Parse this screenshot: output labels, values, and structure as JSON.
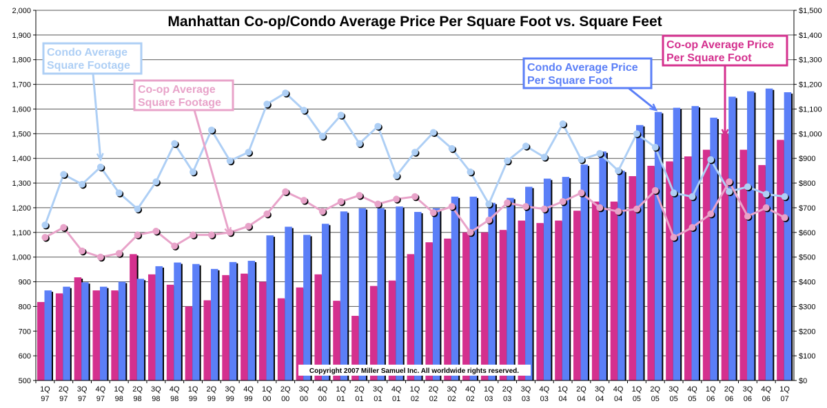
{
  "chart_data": {
    "type": "bar",
    "title": "Manhattan Co-op/Condo Average Price Per Square Foot vs. Square Feet",
    "copyright": "Copyright 2007 Miller Samuel Inc.  All worldwide rights reserved.",
    "grid": true,
    "left_axis": {
      "ylim": [
        500,
        2000
      ],
      "step": 100,
      "format": "comma"
    },
    "right_axis": {
      "ylim": [
        0,
        1500
      ],
      "step": 100,
      "format": "dollar"
    },
    "categories": [
      [
        "1Q",
        "97"
      ],
      [
        "2Q",
        "97"
      ],
      [
        "3Q",
        "97"
      ],
      [
        "4Q",
        "97"
      ],
      [
        "1Q",
        "98"
      ],
      [
        "2Q",
        "98"
      ],
      [
        "3Q",
        "98"
      ],
      [
        "4Q",
        "98"
      ],
      [
        "1Q",
        "99"
      ],
      [
        "2Q",
        "99"
      ],
      [
        "3Q",
        "99"
      ],
      [
        "4Q",
        "99"
      ],
      [
        "1Q",
        "00"
      ],
      [
        "2Q",
        "00"
      ],
      [
        "3Q",
        "00"
      ],
      [
        "4Q",
        "00"
      ],
      [
        "1Q",
        "01"
      ],
      [
        "2Q",
        "01"
      ],
      [
        "3Q",
        "01"
      ],
      [
        "4Q",
        "01"
      ],
      [
        "1Q",
        "02"
      ],
      [
        "2Q",
        "02"
      ],
      [
        "3Q",
        "02"
      ],
      [
        "4Q",
        "02"
      ],
      [
        "1Q",
        "03"
      ],
      [
        "2Q",
        "03"
      ],
      [
        "3Q",
        "03"
      ],
      [
        "4Q",
        "03"
      ],
      [
        "1Q",
        "04"
      ],
      [
        "2Q",
        "04"
      ],
      [
        "3Q",
        "04"
      ],
      [
        "4Q",
        "04"
      ],
      [
        "1Q",
        "05"
      ],
      [
        "2Q",
        "05"
      ],
      [
        "3Q",
        "05"
      ],
      [
        "4Q",
        "05"
      ],
      [
        "1Q",
        "06"
      ],
      [
        "2Q",
        "06"
      ],
      [
        "3Q",
        "06"
      ],
      [
        "4Q",
        "06"
      ],
      [
        "1Q",
        "07"
      ]
    ],
    "series": [
      {
        "name": "Co-op Average Price Per Square Foot",
        "kind": "bar",
        "axis": "right",
        "color": "#d4308e",
        "values": [
          318,
          353,
          418,
          365,
          365,
          512,
          430,
          388,
          300,
          325,
          427,
          433,
          400,
          333,
          377,
          430,
          323,
          262,
          383,
          405,
          512,
          560,
          575,
          600,
          600,
          610,
          648,
          638,
          648,
          688,
          725,
          725,
          828,
          870,
          888,
          908,
          935,
          1000,
          935,
          873,
          975
        ]
      },
      {
        "name": "Condo Average Price Per Square Foot",
        "kind": "bar",
        "axis": "right",
        "color": "#5b7ff7",
        "values": [
          365,
          380,
          398,
          380,
          400,
          412,
          463,
          478,
          472,
          452,
          480,
          485,
          588,
          623,
          590,
          635,
          685,
          698,
          698,
          705,
          683,
          698,
          745,
          745,
          720,
          740,
          785,
          818,
          825,
          875,
          928,
          850,
          1035,
          1088,
          1105,
          1112,
          1065,
          1150,
          1172,
          1183,
          1168
        ]
      },
      {
        "name": "Condo Average Square Footage",
        "kind": "line",
        "axis": "left",
        "color": "#aecff5",
        "values": [
          1130,
          1335,
          1295,
          1365,
          1260,
          1195,
          1305,
          1460,
          1345,
          1515,
          1390,
          1425,
          1620,
          1665,
          1595,
          1490,
          1575,
          1460,
          1530,
          1330,
          1425,
          1505,
          1440,
          1345,
          1215,
          1390,
          1450,
          1405,
          1540,
          1395,
          1420,
          1350,
          1500,
          1445,
          1260,
          1245,
          1395,
          1265,
          1285,
          1255,
          1245
        ]
      },
      {
        "name": "Co-op Average Square Footage",
        "kind": "line",
        "axis": "left",
        "color": "#e8a3c9",
        "values": [
          1080,
          1120,
          1025,
          1000,
          1015,
          1090,
          1105,
          1045,
          1090,
          1090,
          1100,
          1125,
          1175,
          1265,
          1230,
          1185,
          1225,
          1250,
          1215,
          1235,
          1245,
          1180,
          1205,
          1100,
          1150,
          1220,
          1205,
          1195,
          1225,
          1260,
          1200,
          1185,
          1195,
          1270,
          1080,
          1120,
          1175,
          1305,
          1165,
          1200,
          1160
        ]
      }
    ],
    "annotations": [
      {
        "lines": [
          "Condo Average",
          "Square Footage"
        ],
        "color": "#aecff5"
      },
      {
        "lines": [
          "Co-op Average",
          "Square Footage"
        ],
        "color": "#e8a3c9"
      },
      {
        "lines": [
          "Condo Average Price",
          "Per Square Foot"
        ],
        "color": "#5b7ff7"
      },
      {
        "lines": [
          "Co-op Average Price",
          "Per Square Foot"
        ],
        "color": "#d4308e"
      }
    ]
  }
}
